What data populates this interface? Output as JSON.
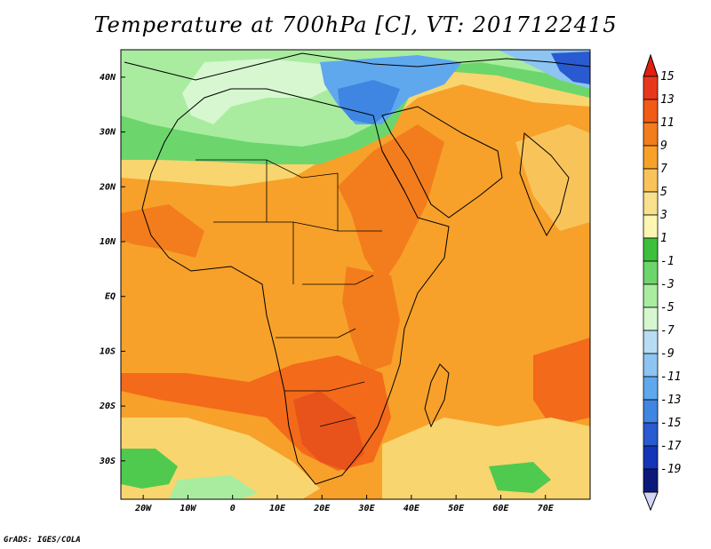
{
  "title": "Temperature at 700hPa [C], VT: 2017122415",
  "footer": "GrADS: IGES/COLA",
  "map": {
    "lon_range": [
      -25,
      80
    ],
    "lat_range": [
      -37,
      45
    ],
    "lon_ticks": [
      {
        "lon": -20,
        "label": "20W"
      },
      {
        "lon": -10,
        "label": "10W"
      },
      {
        "lon": 0,
        "label": "0"
      },
      {
        "lon": 10,
        "label": "10E"
      },
      {
        "lon": 20,
        "label": "20E"
      },
      {
        "lon": 30,
        "label": "30E"
      },
      {
        "lon": 40,
        "label": "40E"
      },
      {
        "lon": 50,
        "label": "50E"
      },
      {
        "lon": 60,
        "label": "60E"
      },
      {
        "lon": 70,
        "label": "70E"
      }
    ],
    "lat_ticks": [
      {
        "lat": 40,
        "label": "40N"
      },
      {
        "lat": 30,
        "label": "30N"
      },
      {
        "lat": 20,
        "label": "20N"
      },
      {
        "lat": 10,
        "label": "10N"
      },
      {
        "lat": 0,
        "label": "EQ"
      },
      {
        "lat": -10,
        "label": "10S"
      },
      {
        "lat": -20,
        "label": "20S"
      },
      {
        "lat": -30,
        "label": "30S"
      }
    ],
    "field_regions": [
      {
        "name": "background",
        "color": "#f7a12a"
      },
      {
        "name": "subtropical-north",
        "color": "#f8d56e"
      },
      {
        "name": "mediterranean-green",
        "color": "#6cd66c"
      },
      {
        "name": "north-light-green",
        "color": "#a9ec9f"
      },
      {
        "name": "north-pale",
        "color": "#d6f7d0"
      },
      {
        "name": "east-med-cold",
        "color": "#5fa8ee"
      },
      {
        "name": "east-med-core",
        "color": "#3f86e2"
      },
      {
        "name": "east-cold-blue",
        "color": "#8ec4f2"
      },
      {
        "name": "east-deep-blue",
        "color": "#2a5ad0"
      },
      {
        "name": "arabia-warm",
        "color": "#f37d1c"
      },
      {
        "name": "sahel-warm",
        "color": "#f37d1c"
      },
      {
        "name": "central-east-warm",
        "color": "#f37d1c"
      },
      {
        "name": "southern-warm-band",
        "color": "#f26a1a"
      },
      {
        "name": "kalahari-hot",
        "color": "#e8531c"
      },
      {
        "name": "south-atlantic-yellow",
        "color": "#f8d56e"
      },
      {
        "name": "south-green",
        "color": "#4fca4f"
      },
      {
        "name": "south-light-green",
        "color": "#a9ec9f"
      },
      {
        "name": "southeast-yellow",
        "color": "#f8d56e"
      },
      {
        "name": "india-yellow",
        "color": "#f8c45a"
      }
    ]
  },
  "colorbar": {
    "levels": [
      "15",
      "13",
      "11",
      "9",
      "7",
      "5",
      "3",
      "1",
      "-1",
      "-3",
      "-5",
      "-7",
      "-9",
      "-11",
      "-13",
      "-15",
      "-17",
      "-19"
    ],
    "colors": [
      "#e8381c",
      "#f25a18",
      "#f37d1c",
      "#f7a12a",
      "#f8c45a",
      "#f8e08c",
      "#fdf5b2",
      "#3cc03c",
      "#6cd66c",
      "#a9ec9f",
      "#d6f7d0",
      "#b7dcf4",
      "#8ec4f2",
      "#5fa8ee",
      "#3f86e2",
      "#2a5ad0",
      "#1435b8",
      "#0b1a7a"
    ],
    "top_color": "#e02010",
    "bottom_color": "#d4d4f8"
  }
}
